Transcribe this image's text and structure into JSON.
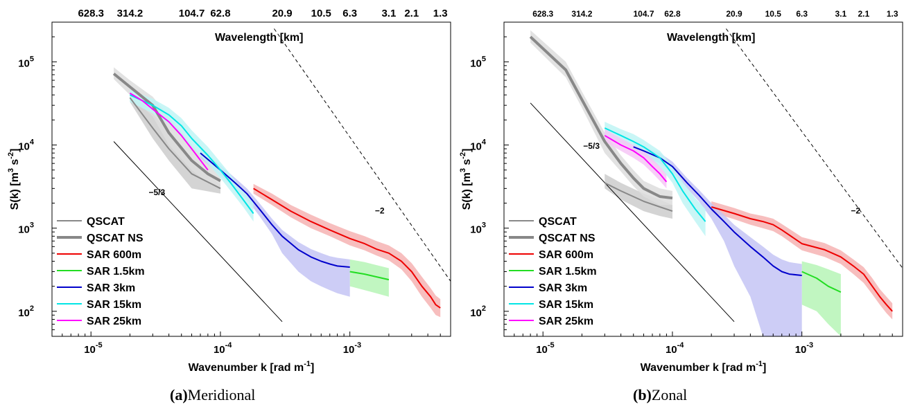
{
  "chart_data": [
    {
      "type": "line",
      "panel_label": "(a)",
      "caption_text": "Meridional",
      "xlabel": "Wavenumber k [rad m",
      "xlabel_sup": "-1",
      "xlabel_end": "]",
      "ylabel": "S(k) [m",
      "ylabel_sup1": "3",
      "ylabel_mid": " s",
      "ylabel_sup2": "-2",
      "ylabel_end": "]",
      "top_axis_label": "Wavelength [km]",
      "x_scale": "log",
      "y_scale": "log",
      "xlim": [
        5e-06,
        0.006
      ],
      "ylim": [
        50,
        300000
      ],
      "x_tick_labels": [
        {
          "mant": "10",
          "exp": "-5"
        },
        {
          "mant": "10",
          "exp": "-4"
        },
        {
          "mant": "10",
          "exp": "-3"
        }
      ],
      "y_tick_labels": [
        {
          "mant": "10",
          "exp": "2"
        },
        {
          "mant": "10",
          "exp": "3"
        },
        {
          "mant": "10",
          "exp": "4"
        },
        {
          "mant": "10",
          "exp": "5"
        }
      ],
      "top_ticks": [
        "628.3",
        "314.2",
        "104.7",
        "62.8",
        "20.9",
        "10.5",
        "6.3",
        "3.1",
        "2.1",
        "1.3"
      ],
      "top_tick_k": [
        1e-05,
        2e-05,
        6e-05,
        0.0001,
        0.0003,
        0.0006,
        0.001,
        0.002,
        0.003,
        0.005
      ],
      "legend": [
        {
          "label": "QSCAT",
          "color": "#888888",
          "width": 2
        },
        {
          "label": "QSCAT NS",
          "color": "#888888",
          "width": 4
        },
        {
          "label": "SAR 600m",
          "color": "#ee0000",
          "width": 2
        },
        {
          "label": "SAR 1.5km",
          "color": "#22dd22",
          "width": 2
        },
        {
          "label": "SAR 3km",
          "color": "#0000cc",
          "width": 2
        },
        {
          "label": "SAR 15km",
          "color": "#00e5e5",
          "width": 2
        },
        {
          "label": "SAR 25km",
          "color": "#ff00ff",
          "width": 2
        }
      ],
      "legend_placement": "bottom-left",
      "ref_lines": [
        {
          "label": "−5/3",
          "dash": false,
          "from": [
            1.5e-05,
            11000
          ],
          "to": [
            0.0003,
            75
          ]
        },
        {
          "label": "−2",
          "dash": true,
          "from": [
            0.00026,
            250000
          ],
          "to": [
            0.006,
            230
          ]
        }
      ],
      "series": [
        {
          "name": "QSCAT",
          "color": "#888888",
          "width": 2,
          "x": [
            2e-05,
            3e-05,
            4e-05,
            6e-05,
            0.0001
          ],
          "y": [
            37000,
            16000,
            9000,
            4500,
            3000
          ],
          "band": {
            "color": "#cccccc",
            "lo": [
              33000,
              12000,
              6500,
              3000,
              2600
            ],
            "hi": [
              44000,
              24000,
              14000,
              7000,
              3300
            ]
          }
        },
        {
          "name": "QSCAT NS",
          "color": "#888888",
          "width": 4,
          "x": [
            1.5e-05,
            2e-05,
            3e-05,
            4e-05,
            6e-05,
            8e-05,
            0.0001
          ],
          "y": [
            72000,
            50000,
            30000,
            14000,
            6500,
            4500,
            3700
          ],
          "band": {
            "color": "#dddddd",
            "lo": [
              62000,
              40000,
              22000,
              10000,
              5000,
              3500,
              3000
            ],
            "hi": [
              86000,
              60000,
              38000,
              22000,
              10000,
              6000,
              4500
            ]
          }
        },
        {
          "name": "SAR 600m",
          "color": "#ee0000",
          "width": 2,
          "x": [
            0.00018,
            0.00025,
            0.00035,
            0.0005,
            0.0007,
            0.001,
            0.0013,
            0.0016,
            0.002,
            0.0025,
            0.003,
            0.0036,
            0.0042,
            0.0046,
            0.005
          ],
          "y": [
            3000,
            2200,
            1600,
            1200,
            950,
            750,
            650,
            560,
            500,
            400,
            300,
            200,
            150,
            120,
            110
          ],
          "band": {
            "color": "#f6b3b3",
            "lo": [
              2600,
              1900,
              1350,
              1000,
              800,
              620,
              540,
              470,
              410,
              320,
              230,
              150,
              110,
              90,
              85
            ],
            "hi": [
              3400,
              2600,
              1900,
              1450,
              1150,
              920,
              800,
              700,
              620,
              500,
              380,
              260,
              190,
              155,
              140
            ]
          }
        },
        {
          "name": "SAR 1.5km",
          "color": "#22dd22",
          "width": 2,
          "x": [
            0.001,
            0.0013,
            0.0016,
            0.002
          ],
          "y": [
            300,
            280,
            260,
            240
          ],
          "band": {
            "color": "#b6f5b6",
            "lo": [
              200,
              180,
              165,
              150
            ],
            "hi": [
              420,
              390,
              360,
              330
            ]
          }
        },
        {
          "name": "SAR 3km",
          "color": "#0000cc",
          "width": 2,
          "x": [
            7e-05,
            0.0001,
            0.00013,
            0.00016,
            0.0002,
            0.00025,
            0.0003,
            0.0004,
            0.0005,
            0.0006,
            0.0007,
            0.0008,
            0.001
          ],
          "y": [
            8000,
            5000,
            3500,
            2600,
            1700,
            1100,
            800,
            550,
            450,
            400,
            370,
            350,
            340
          ],
          "band": {
            "color": "#c4c4f4",
            "lo": [
              7000,
              4300,
              3000,
              2200,
              1400,
              850,
              500,
              300,
              230,
              200,
              180,
              165,
              150
            ],
            "hi": [
              9000,
              5700,
              4000,
              3000,
              2000,
              1300,
              950,
              680,
              560,
              500,
              460,
              440,
              420
            ]
          }
        },
        {
          "name": "SAR 15km",
          "color": "#00e5e5",
          "width": 2,
          "x": [
            2e-05,
            3e-05,
            4e-05,
            5e-05,
            6e-05,
            8e-05,
            0.0001,
            0.00012,
            0.00015,
            0.00018
          ],
          "y": [
            40000,
            30000,
            23000,
            17000,
            12000,
            7500,
            5000,
            3500,
            2200,
            1500
          ],
          "band": {
            "color": "#bff5f5",
            "lo": [
              33000,
              24000,
              18000,
              13000,
              9500,
              6000,
              4000,
              2800,
              1800,
              1200
            ],
            "hi": [
              46000,
              36000,
              28000,
              21000,
              15000,
              9500,
              6200,
              4400,
              2800,
              2000
            ]
          }
        },
        {
          "name": "SAR 25km",
          "color": "#ff00ff",
          "width": 2,
          "x": [
            2e-05,
            2.5e-05,
            3e-05,
            4e-05,
            5e-05,
            6e-05,
            8e-05
          ],
          "y": [
            42000,
            34000,
            27000,
            19000,
            13000,
            9000,
            5000
          ],
          "band": null
        }
      ]
    },
    {
      "type": "line",
      "panel_label": "(b)",
      "caption_text": "Zonal",
      "xlabel": "Wavenumber k [rad m",
      "xlabel_sup": "-1",
      "xlabel_end": "]",
      "ylabel": "S(k) [m",
      "ylabel_sup1": "3",
      "ylabel_mid": " s",
      "ylabel_sup2": "-2",
      "ylabel_end": "]",
      "top_axis_label": "Wavelength [km]",
      "x_scale": "log",
      "y_scale": "log",
      "xlim": [
        5e-06,
        0.006
      ],
      "ylim": [
        50,
        300000
      ],
      "x_tick_labels": [
        {
          "mant": "10",
          "exp": "-5"
        },
        {
          "mant": "10",
          "exp": "-4"
        },
        {
          "mant": "10",
          "exp": "-3"
        }
      ],
      "y_tick_labels": [
        {
          "mant": "10",
          "exp": "2"
        },
        {
          "mant": "10",
          "exp": "3"
        },
        {
          "mant": "10",
          "exp": "4"
        },
        {
          "mant": "10",
          "exp": "5"
        }
      ],
      "top_ticks": [
        "628.3",
        "314.2",
        "104.7",
        "62.8",
        "20.9",
        "10.5",
        "6.3",
        "3.1",
        "2.1",
        "1.3"
      ],
      "top_tick_k": [
        1e-05,
        2e-05,
        6e-05,
        0.0001,
        0.0003,
        0.0006,
        0.001,
        0.002,
        0.003,
        0.005
      ],
      "legend": [
        {
          "label": "QSCAT",
          "color": "#888888",
          "width": 2
        },
        {
          "label": "QSCAT NS",
          "color": "#888888",
          "width": 4
        },
        {
          "label": "SAR 600m",
          "color": "#ee0000",
          "width": 2
        },
        {
          "label": "SAR 1.5km",
          "color": "#22dd22",
          "width": 2
        },
        {
          "label": "SAR 3km",
          "color": "#0000cc",
          "width": 2
        },
        {
          "label": "SAR 15km",
          "color": "#00e5e5",
          "width": 2
        },
        {
          "label": "SAR 25km",
          "color": "#ff00ff",
          "width": 2
        }
      ],
      "legend_placement": "bottom-left",
      "ref_lines": [
        {
          "label": "−5/3",
          "dash": false,
          "from": [
            8e-06,
            32000
          ],
          "to": [
            0.0003,
            75
          ]
        },
        {
          "label": "−2",
          "dash": true,
          "from": [
            0.00026,
            250000
          ],
          "to": [
            0.006,
            330
          ]
        }
      ],
      "series": [
        {
          "name": "QSCAT",
          "color": "#888888",
          "width": 2,
          "x": [
            3e-05,
            4e-05,
            6e-05,
            8e-05,
            0.0001
          ],
          "y": [
            3500,
            2800,
            2100,
            1800,
            1600
          ],
          "band": {
            "color": "#cccccc",
            "lo": [
              3000,
              2200,
              1600,
              1400,
              1300
            ],
            "hi": [
              4500,
              3500,
              2600,
              2200,
              1900
            ]
          }
        },
        {
          "name": "QSCAT NS",
          "color": "#888888",
          "width": 4,
          "x": [
            8e-06,
            1.5e-05,
            2e-05,
            3e-05,
            4e-05,
            5e-05,
            6e-05,
            8e-05,
            0.0001
          ],
          "y": [
            200000,
            80000,
            35000,
            11000,
            6000,
            4000,
            3000,
            2400,
            2300
          ],
          "band": {
            "color": "#dddddd",
            "lo": [
              170000,
              65000,
              28000,
              8000,
              4800,
              3200,
              2400,
              1900,
              1900
            ],
            "hi": [
              240000,
              100000,
              44000,
              14000,
              7500,
              5000,
              3700,
              3000,
              2800
            ]
          }
        },
        {
          "name": "SAR 600m",
          "color": "#ee0000",
          "width": 2,
          "x": [
            0.0002,
            0.0003,
            0.0004,
            0.0005,
            0.0006,
            0.0007,
            0.001,
            0.0015,
            0.002,
            0.0025,
            0.003,
            0.0035,
            0.004,
            0.0045,
            0.005
          ],
          "y": [
            1800,
            1500,
            1300,
            1200,
            1100,
            950,
            650,
            550,
            450,
            350,
            280,
            200,
            150,
            120,
            100
          ],
          "band": {
            "color": "#f6b3b3",
            "lo": [
              1550,
              1280,
              1100,
              1000,
              920,
              800,
              540,
              450,
              370,
              280,
              220,
              160,
              120,
              95,
              80
            ],
            "hi": [
              2100,
              1750,
              1500,
              1400,
              1300,
              1120,
              780,
              660,
              540,
              420,
              340,
              250,
              185,
              150,
              125
            ]
          }
        },
        {
          "name": "SAR 1.5km",
          "color": "#22dd22",
          "width": 2,
          "x": [
            0.001,
            0.0013,
            0.0016,
            0.002
          ],
          "y": [
            300,
            250,
            200,
            170
          ],
          "band": {
            "color": "#b6f5b6",
            "lo": [
              120,
              100,
              70,
              50
            ],
            "hi": [
              400,
              360,
              320,
              280
            ]
          }
        },
        {
          "name": "SAR 3km",
          "color": "#0000cc",
          "width": 2,
          "x": [
            5e-05,
            6e-05,
            8e-05,
            0.0001,
            0.00013,
            0.00016,
            0.0002,
            0.00025,
            0.0003,
            0.0004,
            0.0005,
            0.0006,
            0.0007,
            0.0008,
            0.001
          ],
          "y": [
            9500,
            8500,
            7000,
            5500,
            3500,
            2500,
            1700,
            1200,
            900,
            600,
            450,
            350,
            300,
            280,
            270
          ],
          "band": {
            "color": "#c4c4f4",
            "lo": [
              8500,
              7600,
              6000,
              4700,
              3000,
              2100,
              1300,
              700,
              350,
              150,
              50,
              50,
              50,
              50,
              50
            ],
            "hi": [
              10500,
              9500,
              8000,
              6300,
              4000,
              2900,
              2000,
              1450,
              1100,
              780,
              600,
              480,
              420,
              390,
              370
            ]
          }
        },
        {
          "name": "SAR 15km",
          "color": "#00e5e5",
          "width": 2,
          "x": [
            3e-05,
            4e-05,
            5e-05,
            6e-05,
            8e-05,
            0.0001,
            0.00012,
            0.00015,
            0.00018
          ],
          "y": [
            16000,
            13000,
            11000,
            9500,
            7000,
            4500,
            2800,
            1700,
            1200
          ],
          "band": {
            "color": "#bff5f5",
            "lo": [
              13000,
              10500,
              8800,
              7500,
              5500,
              3500,
              2000,
              1200,
              800
            ],
            "hi": [
              19000,
              15500,
              13500,
              11500,
              8500,
              5600,
              3600,
              2300,
              1700
            ]
          }
        },
        {
          "name": "SAR 25km",
          "color": "#ff00ff",
          "width": 2,
          "x": [
            3e-05,
            4e-05,
            5e-05,
            6e-05,
            7e-05,
            8e-05,
            9e-05
          ],
          "y": [
            13000,
            10000,
            8500,
            7000,
            5500,
            4500,
            3600
          ],
          "band": {
            "color": "#f6c6f6",
            "lo": [
              11000,
              8500,
              7000,
              5800,
              4600,
              3700,
              3000
            ],
            "hi": [
              15500,
              12000,
              10000,
              8500,
              6800,
              5500,
              4400
            ]
          }
        }
      ]
    }
  ]
}
